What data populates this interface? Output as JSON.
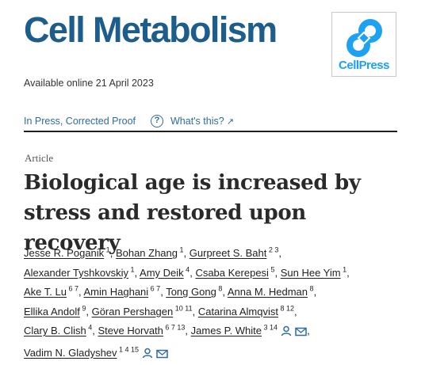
{
  "header": {
    "journal_name": "Cell Metabolism",
    "publisher_logo_text": "CellPress"
  },
  "available_online": "Available online 21 April 2023",
  "status": {
    "label": "In Press, Corrected Proof",
    "help_icon": "?",
    "whats_this": "What's this?",
    "arrow_icon": "↗"
  },
  "article": {
    "type": "Article",
    "title": "Biological age is increased by stress and restored upon recovery"
  },
  "authors": [
    {
      "name": "Jesse R. Poganik",
      "aff": "1"
    },
    {
      "name": "Bohan Zhang",
      "aff": "1"
    },
    {
      "name": "Gurpreet S. Baht",
      "aff": "2 3"
    },
    {
      "name": "Alexander Tyshkovskiy",
      "aff": "1"
    },
    {
      "name": "Amy Deik",
      "aff": "4"
    },
    {
      "name": "Csaba Kerepesi",
      "aff": "5"
    },
    {
      "name": "Sun Hee Yim",
      "aff": "1"
    },
    {
      "name": "Ake T. Lu",
      "aff": "6 7"
    },
    {
      "name": "Amin Haghani",
      "aff": "6 7"
    },
    {
      "name": "Tong Gong",
      "aff": "8"
    },
    {
      "name": "Anna M. Hedman",
      "aff": "8"
    },
    {
      "name": "Ellika Andolf",
      "aff": "9"
    },
    {
      "name": "Göran Pershagen",
      "aff": "10 11"
    },
    {
      "name": "Catarina Almqvist",
      "aff": "8 12"
    },
    {
      "name": "Clary B. Clish",
      "aff": "4"
    },
    {
      "name": "Steve Horvath",
      "aff": "6 7 13"
    },
    {
      "name": "James P. White",
      "aff": "3 14"
    },
    {
      "name": "Vadim N. Gladyshev",
      "aff": "1 4 15"
    }
  ],
  "separator": ",",
  "icons": {
    "person": "person-icon",
    "email": "email-icon"
  },
  "colors": {
    "journal_blue": "#1d5d8c",
    "link_blue": "#2e6aa0",
    "cellpress_blue": "#1da1f2"
  }
}
